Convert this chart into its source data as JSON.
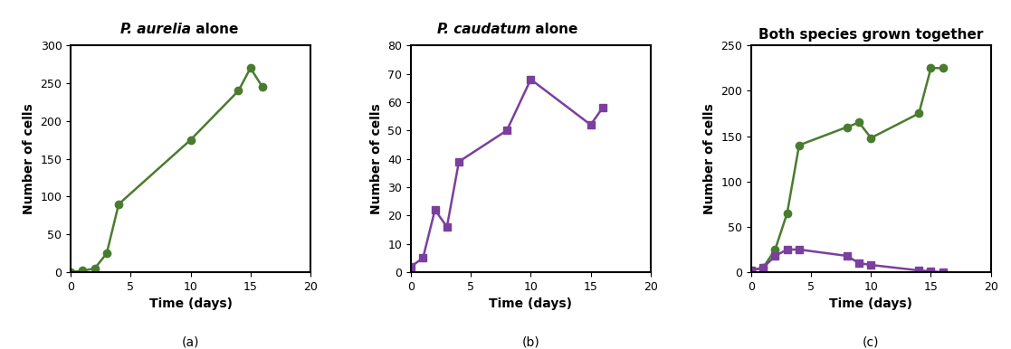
{
  "graph_a": {
    "title_italic": "P. aurelia",
    "title_normal": " alone",
    "color": "#4a7c2f",
    "marker": "o",
    "x": [
      0,
      1,
      2,
      3,
      4,
      10,
      14,
      15,
      16
    ],
    "y": [
      0,
      2,
      5,
      25,
      90,
      175,
      240,
      270,
      245
    ],
    "xlim": [
      0,
      20
    ],
    "ylim": [
      0,
      300
    ],
    "yticks": [
      0,
      50,
      100,
      150,
      200,
      250,
      300
    ],
    "xticks": [
      0,
      5,
      10,
      15,
      20
    ],
    "xlabel": "Time (days)",
    "ylabel": "Number of cells",
    "label": "(a)"
  },
  "graph_b": {
    "title_italic": "P. caudatum",
    "title_normal": " alone",
    "color": "#7b3f9e",
    "marker": "s",
    "x": [
      0,
      1,
      2,
      3,
      4,
      8,
      10,
      15,
      16
    ],
    "y": [
      2,
      5,
      22,
      16,
      39,
      50,
      68,
      52,
      58
    ],
    "xlim": [
      0,
      20
    ],
    "ylim": [
      0,
      80
    ],
    "yticks": [
      0,
      10,
      20,
      30,
      40,
      50,
      60,
      70,
      80
    ],
    "xticks": [
      0,
      5,
      10,
      15,
      20
    ],
    "xlabel": "Time (days)",
    "ylabel": "Number of cells",
    "label": "(b)"
  },
  "graph_c": {
    "title": "Both species grown together",
    "aurelia_color": "#4a7c2f",
    "aurelia_marker": "o",
    "aurelia_x": [
      0,
      1,
      2,
      3,
      4,
      8,
      9,
      10,
      14,
      15,
      16
    ],
    "aurelia_y": [
      2,
      5,
      25,
      65,
      140,
      160,
      165,
      148,
      175,
      225,
      225
    ],
    "caudatum_color": "#7b3f9e",
    "caudatum_marker": "s",
    "caudatum_x": [
      0,
      1,
      2,
      3,
      4,
      8,
      9,
      10,
      14,
      15,
      16
    ],
    "caudatum_y": [
      2,
      5,
      18,
      25,
      25,
      18,
      10,
      8,
      2,
      1,
      0
    ],
    "xlim": [
      0,
      20
    ],
    "ylim": [
      0,
      250
    ],
    "yticks": [
      0,
      50,
      100,
      150,
      200,
      250
    ],
    "xticks": [
      0,
      5,
      10,
      15,
      20
    ],
    "xlabel": "Time (days)",
    "ylabel": "Number of cells",
    "label": "(c)"
  },
  "bg_color": "#ffffff",
  "border_color": "#000000",
  "label_fontsize": 10,
  "tick_fontsize": 9,
  "title_fontsize": 11,
  "linewidth": 1.8,
  "markersize": 6
}
